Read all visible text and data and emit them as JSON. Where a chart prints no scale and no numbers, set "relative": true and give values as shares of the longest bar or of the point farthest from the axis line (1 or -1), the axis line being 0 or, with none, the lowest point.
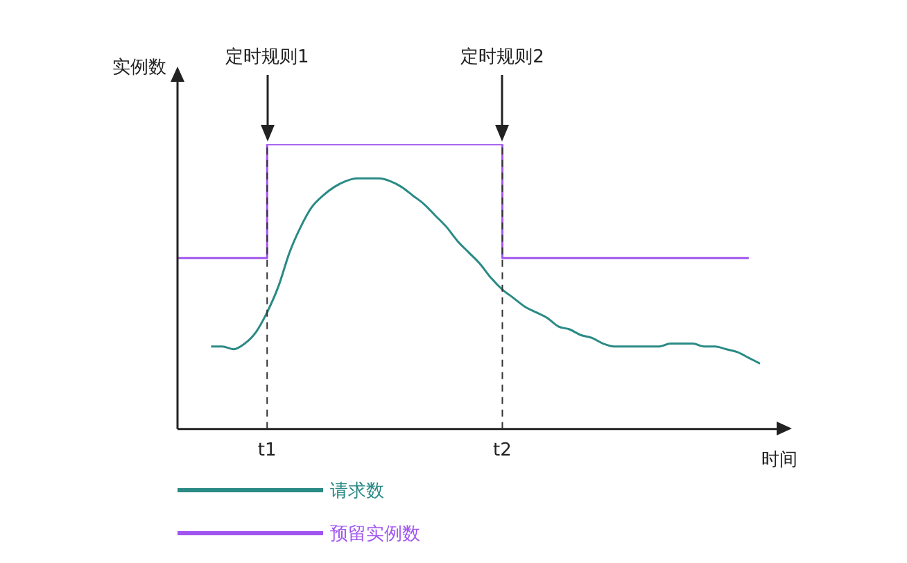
{
  "chart_data": {
    "type": "line",
    "relative": true,
    "xlabel": "时间",
    "ylabel": "实例数",
    "grid": false,
    "marker": "none",
    "legend": "bottom left",
    "categories": [
      null,
      null,
      null,
      null,
      null,
      null,
      null,
      null,
      "t1",
      null,
      null,
      null,
      null,
      null,
      null,
      null,
      null,
      null,
      null,
      null,
      null,
      null,
      null,
      null,
      null,
      null,
      null,
      null,
      null,
      "t2",
      null,
      null,
      null,
      null,
      null,
      null,
      null,
      null,
      null,
      null,
      null,
      null,
      null,
      null,
      null,
      null,
      null,
      null,
      null,
      null,
      null,
      null,
      null
    ],
    "series": [
      {
        "name": "请求数",
        "color": "#2a8a85",
        "values": [
          null,
          null,
          null,
          0.29,
          0.29,
          0.28,
          0.3,
          0.34,
          0.41,
          0.5,
          0.62,
          0.71,
          0.78,
          0.82,
          0.85,
          0.87,
          0.88,
          0.88,
          0.88,
          0.87,
          0.85,
          0.82,
          0.79,
          0.75,
          0.71,
          0.66,
          0.62,
          0.58,
          0.53,
          0.49,
          0.46,
          0.43,
          0.41,
          0.39,
          0.36,
          0.35,
          0.33,
          0.32,
          0.3,
          0.29,
          0.29,
          0.29,
          0.29,
          0.29,
          0.3,
          0.3,
          0.3,
          0.29,
          0.29,
          0.28,
          0.27,
          0.25,
          0.23
        ]
      },
      {
        "name": "预留实例数",
        "type": "step",
        "color": "#a155f0",
        "values": [
          0.6,
          0.6,
          0.6,
          0.6,
          0.6,
          0.6,
          0.6,
          0.6,
          1,
          1,
          1,
          1,
          1,
          1,
          1,
          1,
          1,
          1,
          1,
          1,
          1,
          1,
          1,
          1,
          1,
          1,
          1,
          1,
          1,
          0.6,
          0.6,
          0.6,
          0.6,
          0.6,
          0.6,
          0.6,
          0.6,
          0.6,
          0.6,
          0.6,
          0.6,
          0.6,
          0.6,
          0.6,
          0.6,
          0.6,
          0.6,
          0.6,
          0.6,
          0.6,
          0.6,
          0.6,
          null
        ]
      }
    ],
    "ref_lines": [
      {
        "axis": "x",
        "value": "t1",
        "line_style": "dashed",
        "color": "#333333"
      },
      {
        "axis": "x",
        "value": "t2",
        "line_style": "dashed",
        "color": "#333333"
      }
    ],
    "annotations": [
      "定时规则1",
      "定时规则2"
    ]
  }
}
